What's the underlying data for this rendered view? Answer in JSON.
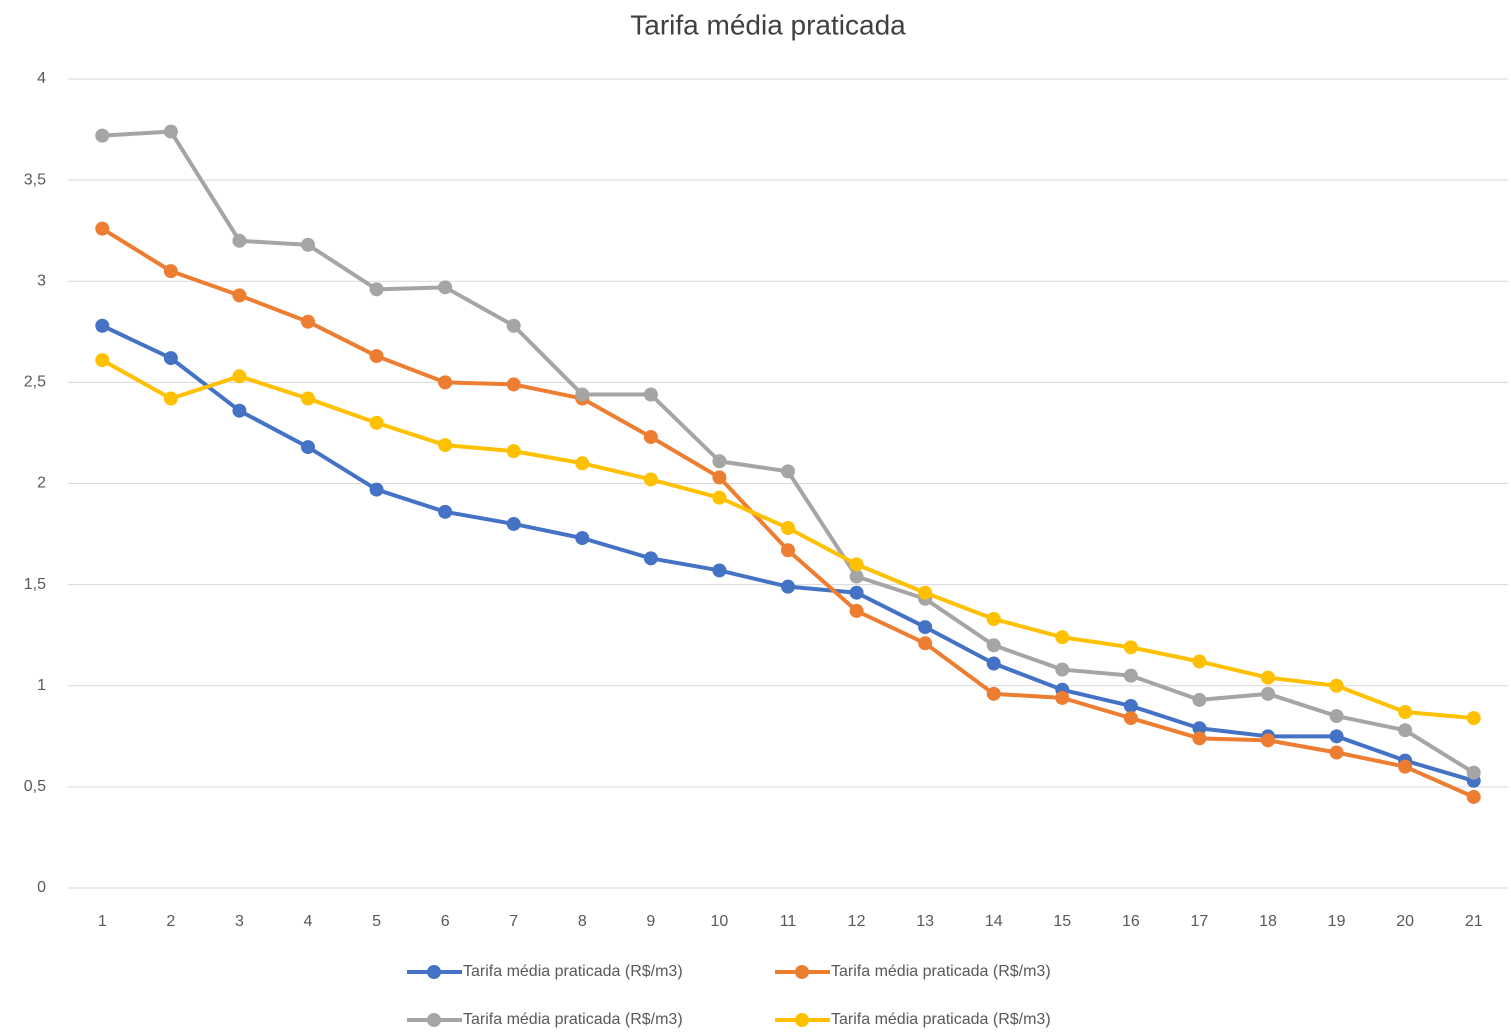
{
  "chart_data": {
    "type": "line",
    "title": "Tarifa média praticada",
    "categories": [
      "1",
      "2",
      "3",
      "4",
      "5",
      "6",
      "7",
      "8",
      "9",
      "10",
      "11",
      "12",
      "13",
      "14",
      "15",
      "16",
      "17",
      "18",
      "19",
      "20",
      "21"
    ],
    "series": [
      {
        "name": "Tarifa média praticada (R$/m3)",
        "color": "#4472c4",
        "values": [
          2.78,
          2.62,
          2.36,
          2.18,
          1.97,
          1.86,
          1.8,
          1.73,
          1.63,
          1.57,
          1.49,
          1.46,
          1.29,
          1.11,
          0.98,
          0.9,
          0.79,
          0.75,
          0.75,
          0.63,
          0.53
        ]
      },
      {
        "name": "Tarifa média praticada (R$/m3)",
        "color": "#ed7d31",
        "values": [
          3.26,
          3.05,
          2.93,
          2.8,
          2.63,
          2.5,
          2.49,
          2.42,
          2.23,
          2.03,
          1.67,
          1.37,
          1.21,
          0.96,
          0.94,
          0.84,
          0.74,
          0.73,
          0.67,
          0.6,
          0.45
        ]
      },
      {
        "name": "Tarifa média praticada (R$/m3)",
        "color": "#a5a5a5",
        "values": [
          3.72,
          3.74,
          3.2,
          3.18,
          2.96,
          2.97,
          2.78,
          2.44,
          2.44,
          2.11,
          2.06,
          1.54,
          1.43,
          1.2,
          1.08,
          1.05,
          0.93,
          0.96,
          0.85,
          0.78,
          0.57
        ]
      },
      {
        "name": "Tarifa média praticada (R$/m3)",
        "color": "#ffc000",
        "values": [
          2.61,
          2.42,
          2.53,
          2.42,
          2.3,
          2.19,
          2.16,
          2.1,
          2.02,
          1.93,
          1.78,
          1.6,
          1.46,
          1.33,
          1.24,
          1.19,
          1.12,
          1.04,
          1.0,
          0.87,
          0.84
        ]
      }
    ],
    "ylim": [
      0,
      4
    ],
    "yticks": [
      0,
      {
        "value": 0.5,
        "label": "0,5"
      },
      1,
      {
        "value": 1.5,
        "label": "1,5"
      },
      2,
      {
        "value": 2.5,
        "label": "2,5"
      },
      3,
      {
        "value": 3.5,
        "label": "3,5"
      },
      4
    ],
    "grid": true,
    "legend": "bottom"
  }
}
